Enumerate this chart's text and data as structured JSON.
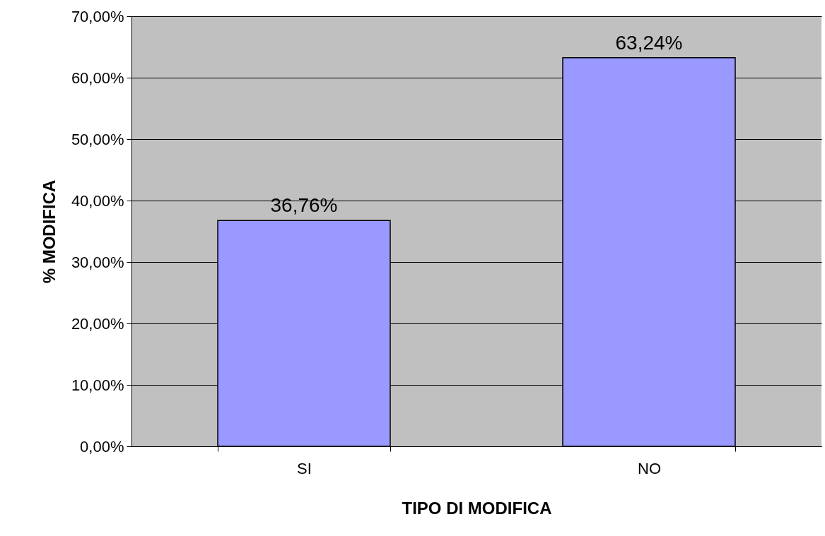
{
  "chart_data": {
    "type": "bar",
    "xlabel": "TIPO DI MODIFICA",
    "ylabel": "% MODIFICA",
    "categories": [
      "SI",
      "NO"
    ],
    "series": [
      {
        "color": "#9999ff",
        "values": [
          36.76,
          63.24
        ]
      }
    ],
    "value_labels": [
      "36,76%",
      "63,24%"
    ],
    "ylim": [
      0,
      70
    ],
    "yticks": [
      {
        "value": 0,
        "label": "0,00%"
      },
      {
        "value": 10,
        "label": "10,00%"
      },
      {
        "value": 20,
        "label": "20,00%"
      },
      {
        "value": 30,
        "label": "30,00%"
      },
      {
        "value": 40,
        "label": "40,00%"
      },
      {
        "value": 50,
        "label": "50,00%"
      },
      {
        "value": 60,
        "label": "60,00%"
      },
      {
        "value": 70,
        "label": "70,00%"
      }
    ],
    "grid": "y"
  }
}
